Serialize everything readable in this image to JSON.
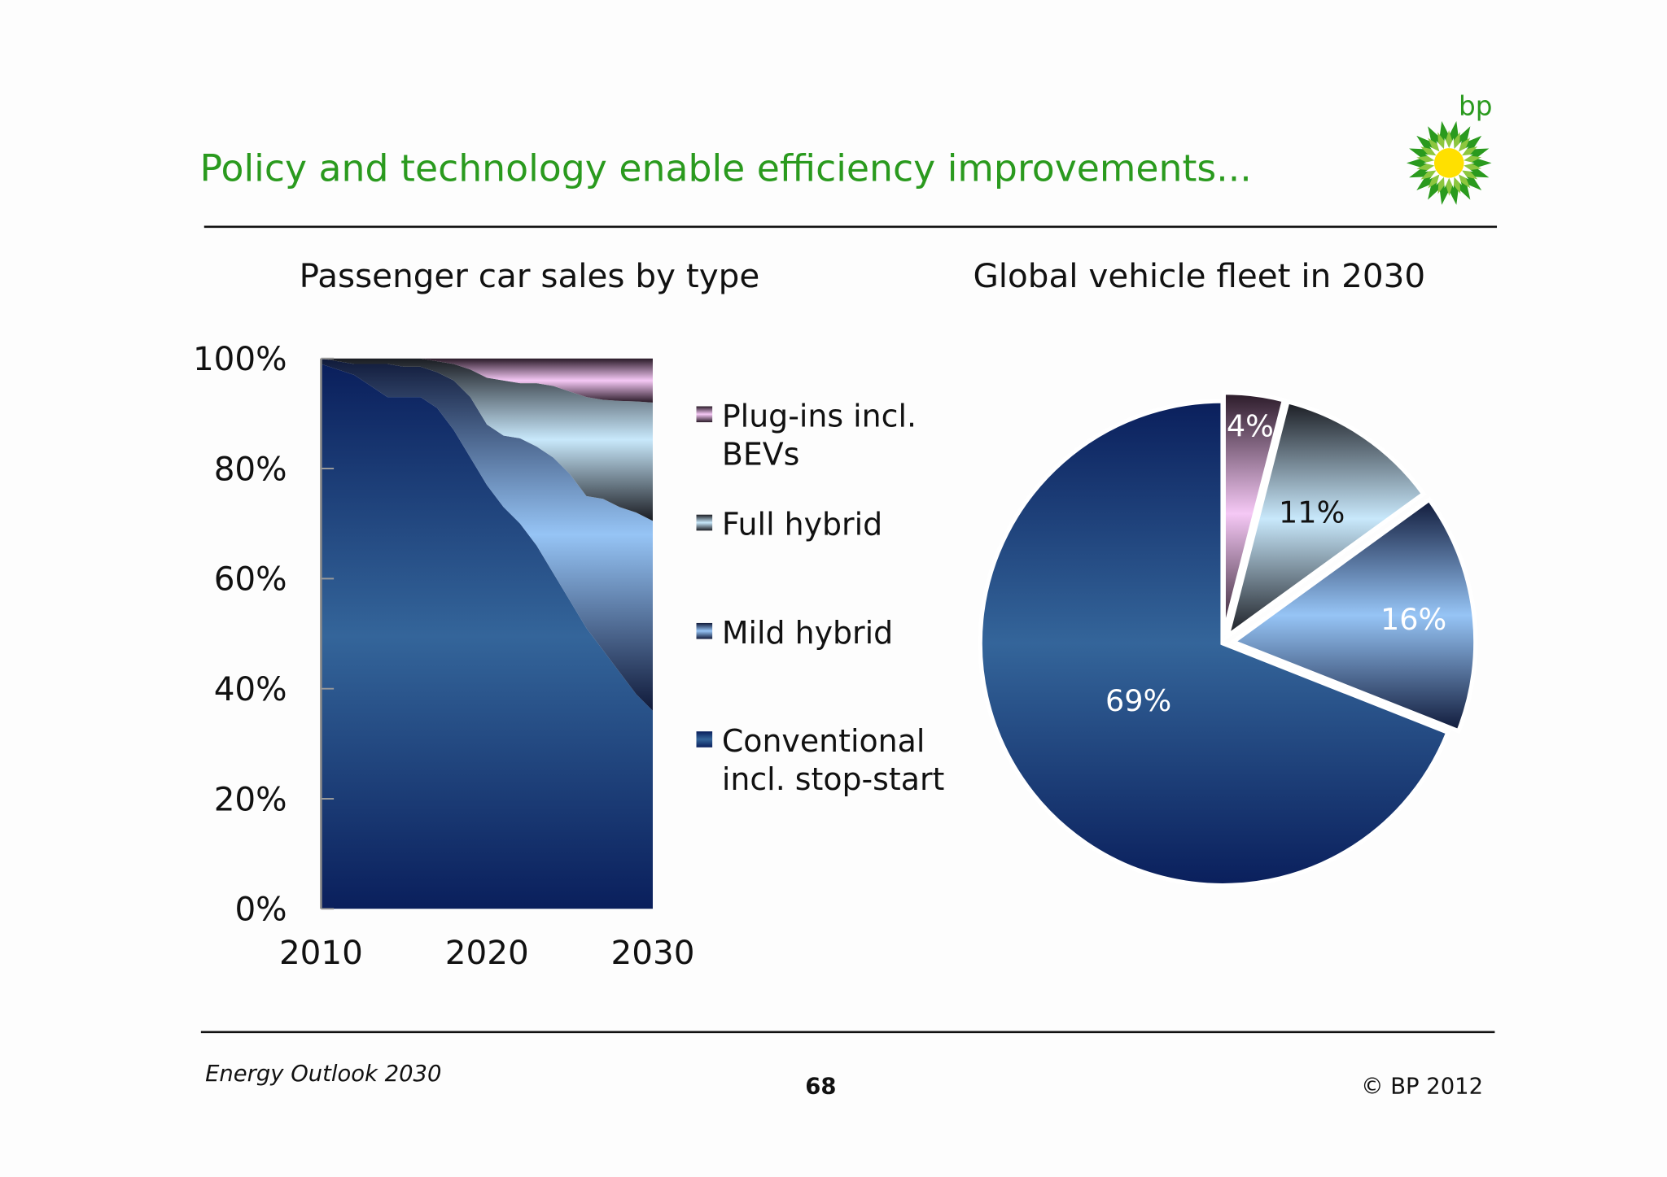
{
  "slide": {
    "title": "Policy and technology enable efficiency improvements...",
    "footer_left": "Energy Outlook 2030",
    "page_number": "68",
    "footer_right": "© BP 2012",
    "logo_text": "bp",
    "colors": {
      "title": "#2a9a1e",
      "logo_green": "#2a9a1e",
      "logo_yellow": "#ffe000"
    }
  },
  "chart_data": [
    {
      "type": "area",
      "stacked": true,
      "title": "Passenger car sales by type",
      "x": [
        2010,
        2011,
        2012,
        2013,
        2014,
        2015,
        2016,
        2017,
        2018,
        2019,
        2020,
        2021,
        2022,
        2023,
        2024,
        2025,
        2026,
        2027,
        2028,
        2029,
        2030
      ],
      "xticks": [
        "2010",
        "2020",
        "2030"
      ],
      "yticks": [
        "0%",
        "20%",
        "40%",
        "60%",
        "80%",
        "100%"
      ],
      "ylim": [
        0,
        100
      ],
      "legend_position": "right",
      "series": [
        {
          "name": "Conventional incl. stop-start",
          "legend_lines": [
            "Conventional",
            "incl. stop-start"
          ],
          "color": "#34659a",
          "values": [
            99,
            98,
            97,
            95,
            93,
            93,
            93,
            91,
            87,
            82,
            77,
            73,
            70,
            66,
            61,
            56,
            51,
            47,
            43,
            39,
            36
          ]
        },
        {
          "name": "Mild hybrid",
          "legend_lines": [
            "Mild hybrid"
          ],
          "color": "#96c4f5",
          "values": [
            1,
            1.5,
            2,
            4,
            6,
            5.5,
            5.5,
            6.5,
            9,
            11,
            11,
            13,
            15.5,
            18,
            21,
            23,
            24,
            27.5,
            30,
            33,
            34.5
          ]
        },
        {
          "name": "Full hybrid",
          "legend_lines": [
            "Full hybrid"
          ],
          "color": "#c8e8fb",
          "values": [
            0,
            0.5,
            1,
            1,
            1,
            1.5,
            1.5,
            2,
            3,
            5,
            8.5,
            10,
            10,
            11.5,
            13,
            15,
            18,
            18,
            19.3,
            20.2,
            21.5
          ]
        },
        {
          "name": "Plug-ins incl. BEVs",
          "legend_lines": [
            "Plug-ins incl.",
            "BEVs"
          ],
          "color": "#f5c8f5",
          "values": [
            0,
            0,
            0,
            0,
            0,
            0,
            0,
            0.5,
            1,
            2,
            3.5,
            4,
            4.5,
            4.5,
            5,
            6,
            7,
            7.5,
            7.7,
            7.8,
            8
          ]
        }
      ]
    },
    {
      "type": "pie",
      "title": "Global vehicle fleet in 2030",
      "slices": [
        {
          "label": "4%",
          "value": 4,
          "color": "#f5c8f5",
          "label_color": "#ffffff"
        },
        {
          "label": "11%",
          "value": 11,
          "color": "#c8e8fb",
          "label_color": "#111111"
        },
        {
          "label": "16%",
          "value": 16,
          "color": "#96c4f5",
          "label_color": "#ffffff"
        },
        {
          "label": "69%",
          "value": 69,
          "color": "#34659a",
          "label_color": "#ffffff"
        }
      ]
    }
  ]
}
